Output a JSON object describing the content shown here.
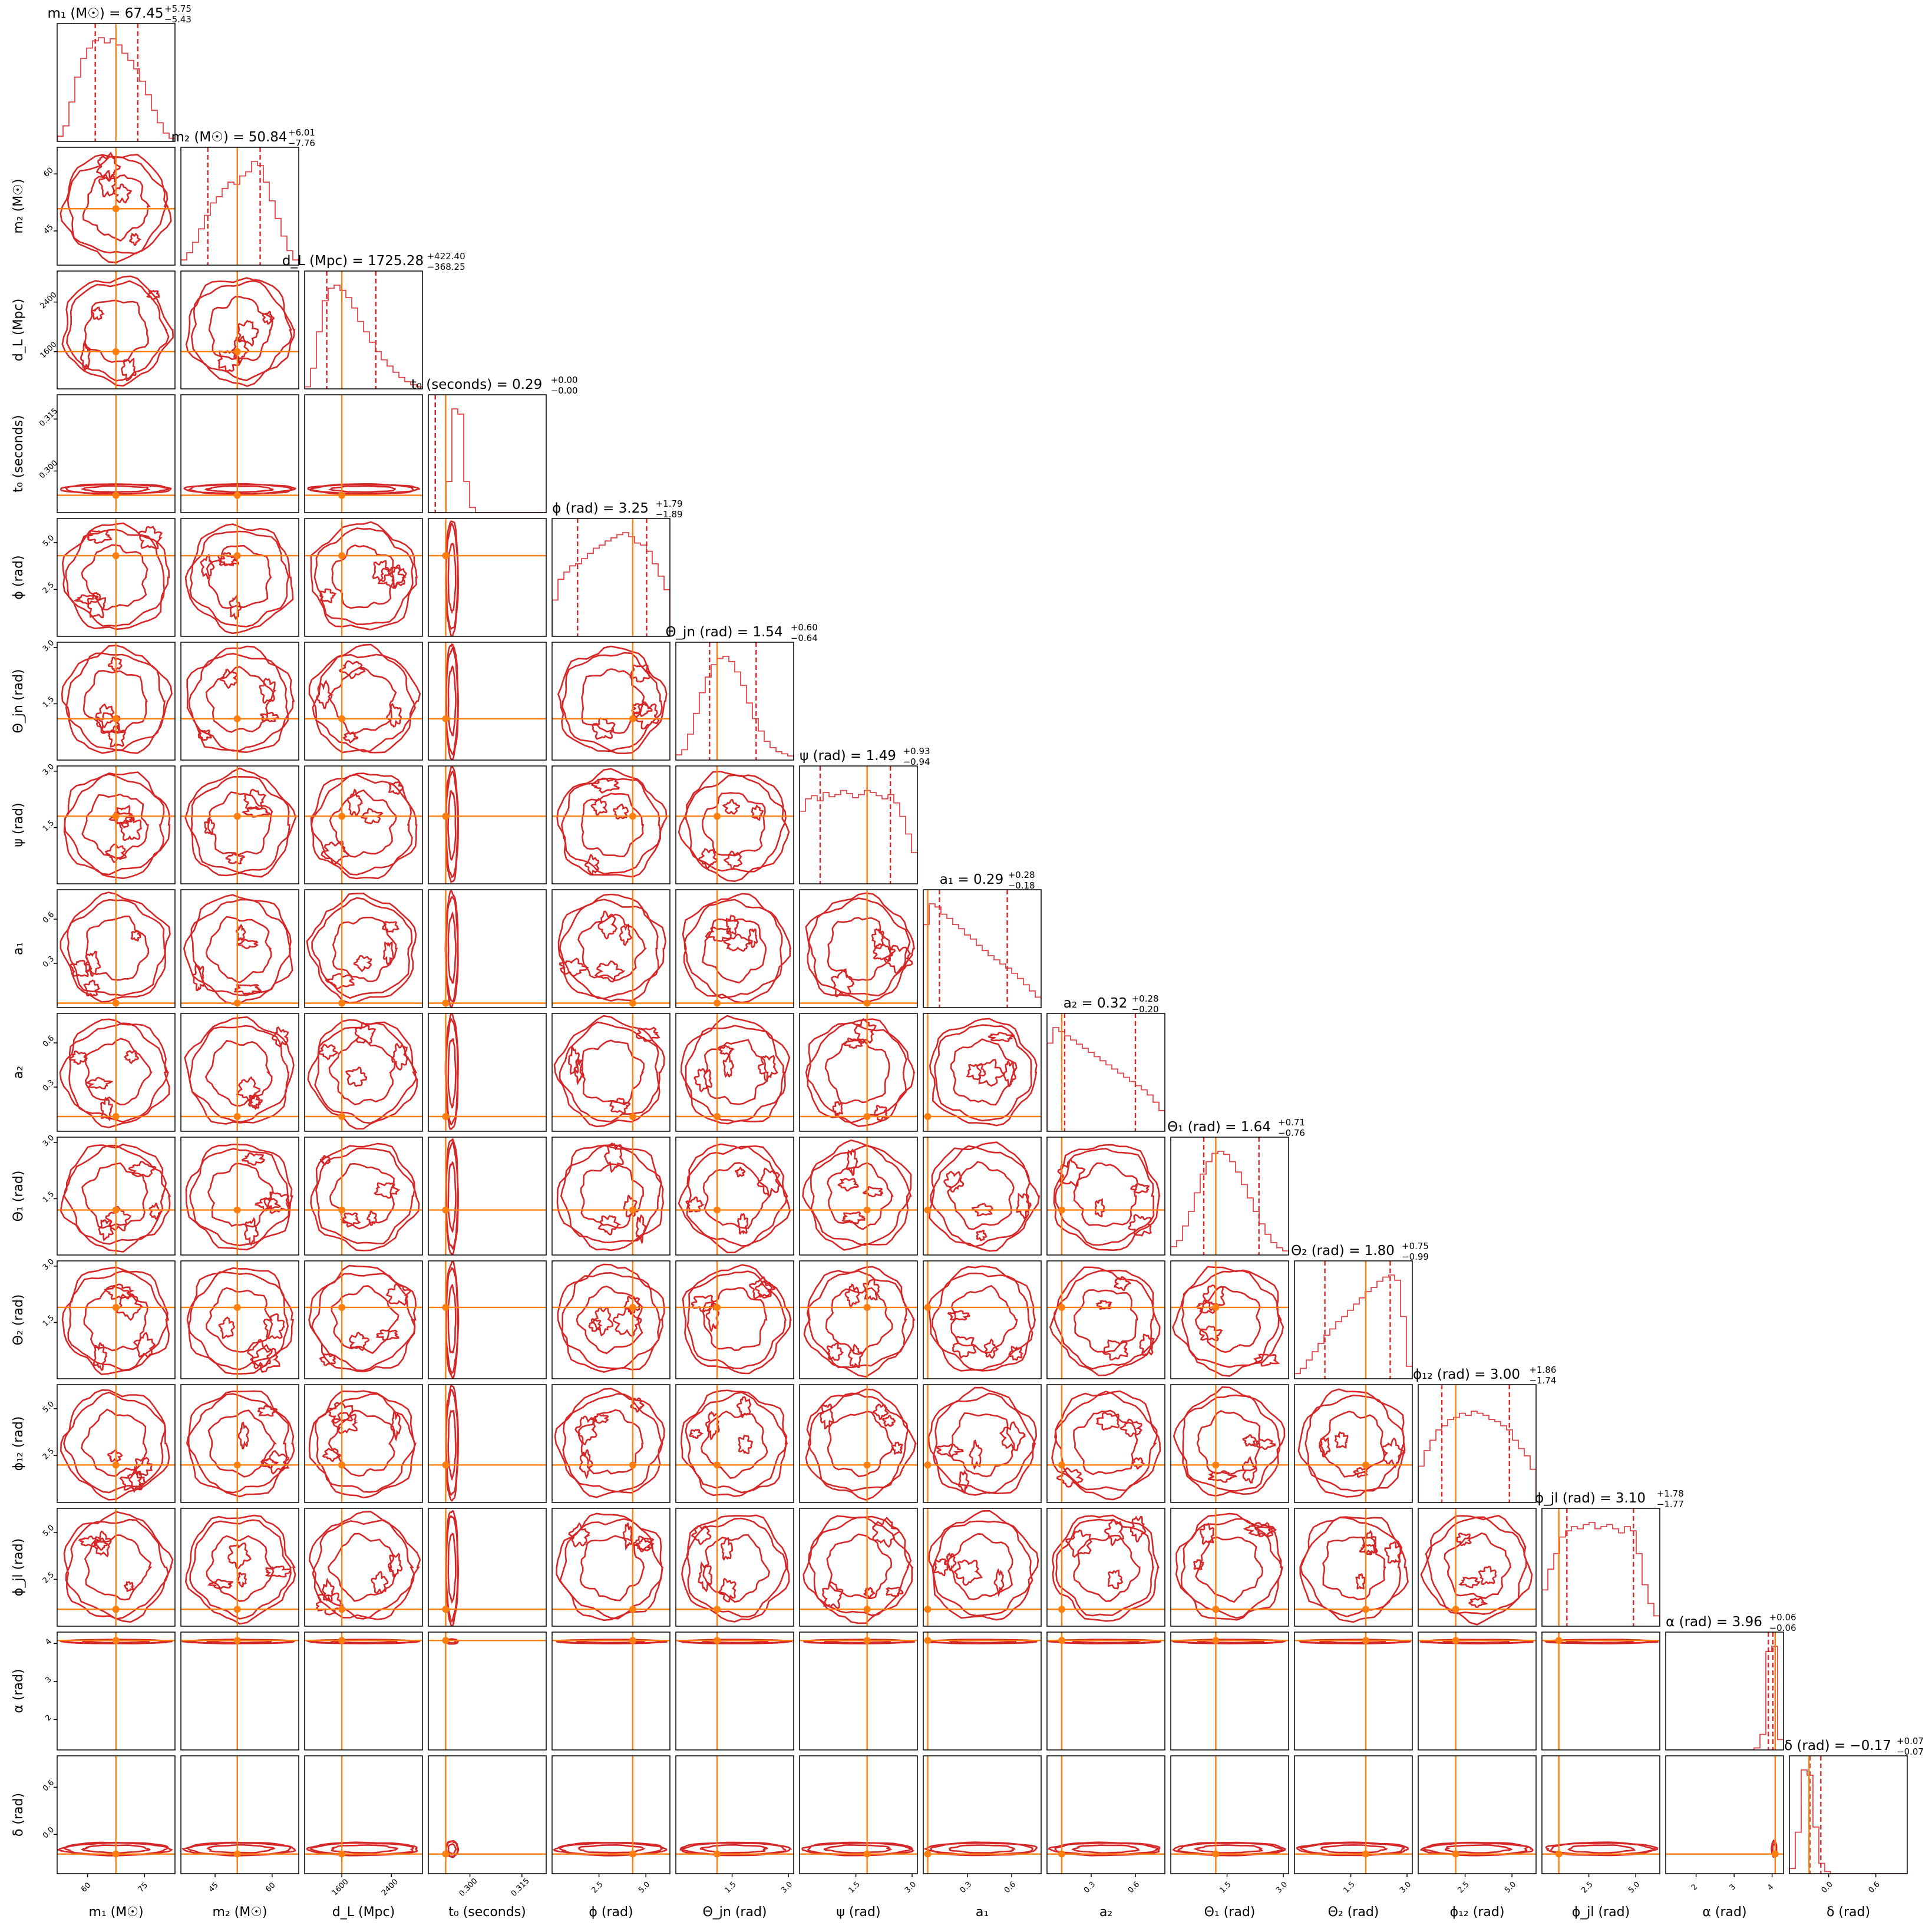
{
  "chart_data": {
    "type": "corner",
    "colors": {
      "contour": "#d62728",
      "truth": "#ff7f0e",
      "hist": "#e0474c"
    },
    "parameters": [
      {
        "key": "m1",
        "label": "m₁ (M☉)",
        "title": "m₁ (M☉) = 67.45",
        "median": 67.45,
        "plus": "+5.75",
        "minus": "−5.43",
        "range": [
          52,
          83
        ],
        "truth": 67.45,
        "ticks": [
          {
            "v": 60,
            "t": "60"
          },
          {
            "v": 75,
            "t": "75"
          }
        ]
      },
      {
        "key": "m2",
        "label": "m₂ (M☉)",
        "title": "m₂ (M☉) = 50.84",
        "median": 50.84,
        "plus": "+6.01",
        "minus": "−7.76",
        "range": [
          36,
          67
        ],
        "truth": 50.84,
        "ticks": [
          {
            "v": 45,
            "t": "45"
          },
          {
            "v": 60,
            "t": "60"
          }
        ]
      },
      {
        "key": "dL",
        "label": "d_L (Mpc)",
        "title": "d_L (Mpc) = 1725.28",
        "median": 1725.28,
        "plus": "+422.40",
        "minus": "−368.25",
        "range": [
          1000,
          2900
        ],
        "truth": 1600,
        "ticks": [
          {
            "v": 1600,
            "t": "1600"
          },
          {
            "v": 2400,
            "t": "2400"
          }
        ]
      },
      {
        "key": "t0",
        "label": "t₀ (seconds)",
        "title": "t₀ (seconds) = 0.29",
        "median": 0.29,
        "plus": "+0.00",
        "minus": "−0.00",
        "range": [
          0.288,
          0.322
        ],
        "truth": 0.293,
        "ticks": [
          {
            "v": 0.3,
            "t": "0.300"
          },
          {
            "v": 0.315,
            "t": "0.315"
          }
        ]
      },
      {
        "key": "phi",
        "label": "ϕ (rad)",
        "title": "ϕ (rad) = 3.25",
        "median": 3.25,
        "plus": "+1.79",
        "minus": "−1.89",
        "range": [
          0,
          6.283
        ],
        "truth": 4.3,
        "ticks": [
          {
            "v": 2.5,
            "t": "2.5"
          },
          {
            "v": 5.0,
            "t": "5.0"
          }
        ]
      },
      {
        "key": "thjn",
        "label": "Θ_jn (rad)",
        "title": "Θ_jn (rad) = 1.54",
        "median": 1.54,
        "plus": "+0.60",
        "minus": "−0.64",
        "range": [
          0,
          3.14
        ],
        "truth": 1.1,
        "ticks": [
          {
            "v": 1.5,
            "t": "1.5"
          },
          {
            "v": 3.0,
            "t": "3.0"
          }
        ]
      },
      {
        "key": "psi",
        "label": "ψ (rad)",
        "title": "ψ (rad) = 1.49",
        "median": 1.49,
        "plus": "+0.93",
        "minus": "−0.94",
        "range": [
          0,
          3.14
        ],
        "truth": 1.8,
        "ticks": [
          {
            "v": 1.5,
            "t": "1.5"
          },
          {
            "v": 3.0,
            "t": "3.0"
          }
        ]
      },
      {
        "key": "a1",
        "label": "a₁",
        "title": "a₁ = 0.29",
        "median": 0.29,
        "plus": "+0.28",
        "minus": "−0.18",
        "range": [
          0,
          0.8
        ],
        "truth": 0.03,
        "ticks": [
          {
            "v": 0.3,
            "t": "0.3"
          },
          {
            "v": 0.6,
            "t": "0.6"
          }
        ]
      },
      {
        "key": "a2",
        "label": "a₂",
        "title": "a₂ = 0.32",
        "median": 0.32,
        "plus": "+0.28",
        "minus": "−0.20",
        "range": [
          0,
          0.8
        ],
        "truth": 0.1,
        "ticks": [
          {
            "v": 0.3,
            "t": "0.3"
          },
          {
            "v": 0.6,
            "t": "0.6"
          }
        ]
      },
      {
        "key": "th1",
        "label": "Θ₁ (rad)",
        "title": "Θ₁ (rad) = 1.64",
        "median": 1.64,
        "plus": "+0.71",
        "minus": "−0.76",
        "range": [
          0,
          3.14
        ],
        "truth": 1.2,
        "ticks": [
          {
            "v": 1.5,
            "t": "1.5"
          },
          {
            "v": 3.0,
            "t": "3.0"
          }
        ]
      },
      {
        "key": "th2",
        "label": "Θ₂ (rad)",
        "title": "Θ₂ (rad) = 1.80",
        "median": 1.8,
        "plus": "+0.75",
        "minus": "−0.99",
        "range": [
          0,
          3.14
        ],
        "truth": 1.9,
        "ticks": [
          {
            "v": 1.5,
            "t": "1.5"
          },
          {
            "v": 3.0,
            "t": "3.0"
          }
        ]
      },
      {
        "key": "phi12",
        "label": "ϕ₁₂ (rad)",
        "title": "ϕ₁₂ (rad) = 3.00",
        "median": 3.0,
        "plus": "+1.86",
        "minus": "−1.74",
        "range": [
          0,
          6.283
        ],
        "truth": 2.0,
        "ticks": [
          {
            "v": 2.5,
            "t": "2.5"
          },
          {
            "v": 5.0,
            "t": "5.0"
          }
        ]
      },
      {
        "key": "phijl",
        "label": "ϕ_jl (rad)",
        "title": "ϕ_jl (rad) = 3.10",
        "median": 3.1,
        "plus": "+1.78",
        "minus": "−1.77",
        "range": [
          0,
          6.283
        ],
        "truth": 0.9,
        "ticks": [
          {
            "v": 2.5,
            "t": "2.5"
          },
          {
            "v": 5.0,
            "t": "5.0"
          }
        ]
      },
      {
        "key": "alpha",
        "label": "α (rad)",
        "title": "α (rad) = 3.96",
        "median": 3.96,
        "plus": "+0.06",
        "minus": "−0.06",
        "range": [
          1.2,
          4.3
        ],
        "truth": 4.08,
        "ticks": [
          {
            "v": 2,
            "t": "2"
          },
          {
            "v": 3,
            "t": "3"
          },
          {
            "v": 4,
            "t": "4"
          }
        ]
      },
      {
        "key": "delta",
        "label": "δ (rad)",
        "title": "δ (rad) = −0.17",
        "median": -0.17,
        "plus": "+0.07",
        "minus": "−0.07",
        "range": [
          -0.5,
          1.0
        ],
        "truth": -0.25,
        "ticks": [
          {
            "v": -0.0,
            "t": "0.0"
          },
          {
            "v": 0.6,
            "t": "0.6"
          }
        ]
      }
    ],
    "diag_hist": {
      "m1": [
        0.05,
        0.15,
        0.38,
        0.62,
        0.8,
        0.9,
        0.97,
        1.0,
        0.95,
        0.99,
        0.93,
        0.85,
        0.78,
        0.7,
        0.58,
        0.45,
        0.3,
        0.18,
        0.08,
        0.03
      ],
      "m2": [
        0.05,
        0.12,
        0.22,
        0.35,
        0.48,
        0.6,
        0.66,
        0.74,
        0.8,
        0.78,
        0.86,
        0.9,
        1.0,
        0.96,
        0.8,
        0.62,
        0.45,
        0.28,
        0.14,
        0.05
      ],
      "dL": [
        0.02,
        0.2,
        0.55,
        0.85,
        0.97,
        1.0,
        0.95,
        0.88,
        0.78,
        0.65,
        0.55,
        0.45,
        0.36,
        0.28,
        0.22,
        0.16,
        0.11,
        0.07,
        0.04,
        0.02
      ],
      "t0": [
        0.0,
        0.0,
        0.0,
        0.3,
        1.0,
        0.95,
        0.3,
        0.05,
        0.0,
        0.0,
        0.0,
        0.0,
        0.0,
        0.0,
        0.0,
        0.0,
        0.0,
        0.0,
        0.0,
        0.0
      ],
      "phi": [
        0.35,
        0.55,
        0.62,
        0.68,
        0.7,
        0.75,
        0.8,
        0.85,
        0.88,
        0.92,
        0.95,
        0.98,
        1.0,
        0.96,
        0.9,
        0.88,
        0.82,
        0.7,
        0.58,
        0.45
      ],
      "thjn": [
        0.05,
        0.1,
        0.25,
        0.45,
        0.65,
        0.8,
        0.92,
        0.98,
        1.0,
        0.95,
        0.85,
        0.72,
        0.55,
        0.4,
        0.28,
        0.18,
        0.12,
        0.08,
        0.06,
        0.04
      ],
      "psi": [
        0.7,
        0.82,
        0.85,
        0.8,
        0.88,
        0.84,
        0.86,
        0.9,
        0.87,
        0.83,
        0.86,
        0.9,
        0.88,
        0.85,
        0.82,
        0.86,
        0.78,
        0.65,
        0.48,
        0.3
      ],
      "a1": [
        0.8,
        1.0,
        0.97,
        0.9,
        0.86,
        0.8,
        0.76,
        0.7,
        0.66,
        0.6,
        0.55,
        0.5,
        0.46,
        0.42,
        0.38,
        0.33,
        0.28,
        0.22,
        0.16,
        0.1
      ],
      "a2": [
        0.85,
        1.0,
        0.96,
        0.92,
        0.88,
        0.84,
        0.8,
        0.76,
        0.72,
        0.68,
        0.64,
        0.6,
        0.56,
        0.52,
        0.48,
        0.44,
        0.4,
        0.35,
        0.28,
        0.2
      ],
      "th1": [
        0.08,
        0.14,
        0.28,
        0.42,
        0.6,
        0.78,
        0.9,
        0.98,
        1.0,
        0.97,
        0.9,
        0.8,
        0.68,
        0.55,
        0.42,
        0.3,
        0.2,
        0.12,
        0.07,
        0.04
      ],
      "th2": [
        0.05,
        0.1,
        0.18,
        0.26,
        0.34,
        0.42,
        0.48,
        0.55,
        0.6,
        0.66,
        0.72,
        0.78,
        0.84,
        0.88,
        0.94,
        0.98,
        1.0,
        0.95,
        0.6,
        0.12
      ],
      "phi12": [
        0.35,
        0.5,
        0.6,
        0.7,
        0.74,
        0.8,
        0.82,
        0.86,
        0.84,
        0.88,
        0.86,
        0.84,
        0.8,
        0.78,
        0.74,
        0.7,
        0.6,
        0.52,
        0.45,
        0.32
      ],
      "phijl": [
        0.35,
        0.55,
        0.7,
        0.86,
        0.92,
        0.96,
        0.94,
        0.98,
        1.0,
        0.94,
        0.96,
        0.98,
        0.94,
        0.9,
        0.96,
        0.92,
        0.7,
        0.4,
        0.22,
        0.1
      ],
      "alpha": [
        0,
        0,
        0,
        0,
        0,
        0,
        0,
        0,
        0,
        0,
        0,
        0,
        0,
        0,
        0,
        0.02,
        0.15,
        0.95,
        1.0,
        0.1
      ],
      "delta": [
        0.05,
        0.4,
        1.0,
        0.95,
        0.45,
        0.1,
        0.02,
        0,
        0,
        0,
        0,
        0,
        0,
        0,
        0,
        0,
        0,
        0,
        0,
        0
      ]
    }
  }
}
